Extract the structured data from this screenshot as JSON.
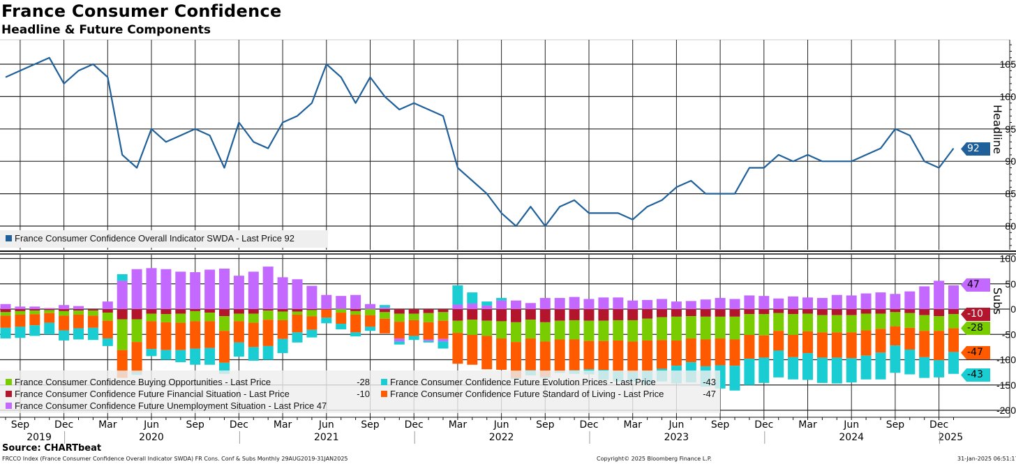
{
  "title": "France Consumer Confidence",
  "subtitle": "Headline & Future Components",
  "source": "Source: CHARTbeat",
  "footer": {
    "left": "FRCCO Index (France Consumer Confidence Overall Indicator SWDA) FR Cons. Conf & Subs  Monthly 29AUG2019-31JAN2025",
    "copyright": "Copyright© 2025 Bloomberg Finance L.P.",
    "timestamp": "31-Jan-2025 06:51:17"
  },
  "colors": {
    "headline": "#1f5f9a",
    "unemployment": "#c469ff",
    "financial": "#b3162c",
    "buying": "#78cc00",
    "standard": "#ff5a00",
    "prices": "#19cdd3",
    "grid": "#222222"
  },
  "legend_top": {
    "label": "France Consumer Confidence Overall Indicator SWDA - Last Price 92"
  },
  "legend_bottom": [
    {
      "key": "buying",
      "label": "France Consumer Confidence Buying Opportunities - Last Price",
      "value": "-28"
    },
    {
      "key": "financial",
      "label": "France Consumer Confidence Future Financial Situation - Last Price",
      "value": "-10"
    },
    {
      "key": "unemployment",
      "label": "France Consumer Confidence Future Unemployment Situation - Last Price 47",
      "value": ""
    },
    {
      "key": "prices",
      "label": "France Consumer Confidence Future Evolution Prices - Last Price",
      "value": "-43"
    },
    {
      "key": "standard",
      "label": "France Consumer Confidence Future Standard of Living - Last Price",
      "value": "-47"
    }
  ],
  "tags": {
    "headline": "92",
    "unemployment": "47",
    "financial": "-10",
    "buying": "-28",
    "standard": "-47",
    "prices": "-43"
  },
  "chart_data": [
    {
      "type": "line",
      "title": "Headline",
      "ylabel": "Headline",
      "ylim": [
        76,
        108
      ],
      "yticks": [
        80,
        85,
        90,
        95,
        100,
        105
      ],
      "grid": true,
      "start": "2019-08",
      "frequency": "monthly",
      "series": [
        {
          "name": "France Consumer Confidence Overall Indicator SWDA",
          "values": [
            103,
            104,
            105,
            106,
            102,
            104,
            105,
            103,
            91,
            89,
            95,
            93,
            94,
            95,
            94,
            89,
            96,
            93,
            92,
            96,
            97,
            99,
            105,
            103,
            99,
            103,
            100,
            98,
            99,
            98,
            97,
            89,
            87,
            85,
            82,
            80,
            83,
            80,
            83,
            84,
            82,
            82,
            82,
            81,
            83,
            84,
            86,
            87,
            85,
            85,
            85,
            89,
            89,
            91,
            90,
            91,
            90,
            90,
            90,
            91,
            92,
            95,
            94,
            90,
            89,
            92
          ]
        }
      ]
    },
    {
      "type": "bar",
      "stacked": true,
      "title": "Subs",
      "ylabel": "Subs",
      "ylim": [
        -215,
        105
      ],
      "yticks": [
        100,
        50,
        0,
        -50,
        -100,
        -150,
        -200
      ],
      "grid": true,
      "start": "2019-08",
      "frequency": "monthly",
      "series": [
        {
          "key": "financial",
          "name": "France Consumer Confidence Future Financial Situation",
          "values": [
            -6,
            -4,
            -3,
            -2,
            -4,
            -3,
            -3,
            -7,
            -20,
            -20,
            -9,
            -10,
            -9,
            -4,
            -7,
            -14,
            -9,
            -9,
            -3,
            -5,
            -5,
            -2,
            -1,
            0,
            -4,
            0,
            -6,
            -9,
            -9,
            -8,
            -6,
            -23,
            -21,
            -23,
            -24,
            -26,
            -21,
            -26,
            -23,
            -22,
            -23,
            -23,
            -22,
            -22,
            -19,
            -16,
            -15,
            -14,
            -15,
            -15,
            -15,
            -10,
            -10,
            -8,
            -10,
            -9,
            -12,
            -12,
            -12,
            -9,
            -9,
            -6,
            -8,
            -12,
            -14,
            -10
          ]
        },
        {
          "key": "buying",
          "name": "France Consumer Confidence Buying Opportunities",
          "values": [
            -7,
            -7,
            -7,
            -6,
            -9,
            -8,
            -10,
            -16,
            -61,
            -45,
            -15,
            -16,
            -18,
            -20,
            -17,
            -29,
            -15,
            -18,
            -18,
            -17,
            -6,
            -12,
            0,
            -7,
            -7,
            -12,
            -13,
            -16,
            -13,
            -18,
            -17,
            -24,
            -30,
            -30,
            -34,
            -39,
            -37,
            -38,
            -37,
            -38,
            -40,
            -40,
            -40,
            -42,
            -43,
            -45,
            -47,
            -44,
            -45,
            -43,
            -45,
            -41,
            -42,
            -35,
            -41,
            -35,
            -34,
            -34,
            -34,
            -33,
            -30,
            -28,
            -29,
            -31,
            -29,
            -28
          ]
        },
        {
          "key": "standard",
          "name": "France Consumer Confidence Future Standard of Living",
          "values": [
            -24,
            -24,
            -22,
            -19,
            -29,
            -27,
            -24,
            -35,
            -55,
            -60,
            -55,
            -55,
            -54,
            -54,
            -53,
            -63,
            -42,
            -48,
            -52,
            -37,
            -35,
            -27,
            -16,
            -22,
            -35,
            -23,
            -29,
            -33,
            -31,
            -34,
            -36,
            -61,
            -59,
            -66,
            -62,
            -71,
            -63,
            -70,
            -63,
            -61,
            -56,
            -57,
            -61,
            -61,
            -60,
            -57,
            -50,
            -47,
            -53,
            -53,
            -52,
            -47,
            -44,
            -39,
            -44,
            -43,
            -50,
            -50,
            -51,
            -50,
            -47,
            -38,
            -43,
            -52,
            -58,
            -47
          ]
        },
        {
          "key": "unemployment",
          "name": "France Consumer Confidence Future Unemployment Situation",
          "values": [
            10,
            5,
            5,
            2,
            8,
            6,
            0,
            15,
            56,
            79,
            81,
            79,
            74,
            73,
            78,
            80,
            66,
            74,
            84,
            63,
            59,
            46,
            28,
            26,
            28,
            10,
            3,
            -6,
            0,
            -3,
            -5,
            9,
            11,
            7,
            17,
            17,
            12,
            22,
            22,
            24,
            20,
            23,
            23,
            17,
            18,
            20,
            15,
            16,
            19,
            22,
            20,
            27,
            26,
            21,
            25,
            23,
            22,
            28,
            27,
            31,
            33,
            30,
            35,
            45,
            56,
            47
          ]
        },
        {
          "key": "prices",
          "name": "France Consumer Confidence Future Evolution Prices",
          "values": [
            -21,
            -22,
            -21,
            -23,
            -20,
            -22,
            -24,
            -15,
            13,
            -5,
            -14,
            -19,
            -24,
            -32,
            -33,
            -22,
            -28,
            -27,
            -27,
            -28,
            -20,
            -15,
            -11,
            -11,
            -8,
            -8,
            5,
            -6,
            -8,
            -3,
            -14,
            38,
            22,
            8,
            5,
            -2,
            -10,
            -2,
            -3,
            -7,
            -10,
            -20,
            -20,
            -18,
            -26,
            -25,
            -35,
            -40,
            -40,
            -46,
            -49,
            -52,
            -50,
            -53,
            -44,
            -53,
            -50,
            -51,
            -48,
            -47,
            -53,
            -54,
            -49,
            -41,
            -34,
            -43
          ]
        }
      ]
    }
  ],
  "x_axis": {
    "tick_labels": [
      "Sep",
      "Dec",
      "Mar",
      "Jun",
      "Sep",
      "Dec",
      "Mar",
      "Jun",
      "Sep",
      "Dec",
      "Mar",
      "Jun",
      "Sep",
      "Dec",
      "Mar",
      "Jun",
      "Sep",
      "Dec",
      "Mar",
      "Jun",
      "Sep",
      "Dec"
    ],
    "years": [
      "2019",
      "2020",
      "2021",
      "2022",
      "2023",
      "2024",
      "2025"
    ]
  }
}
